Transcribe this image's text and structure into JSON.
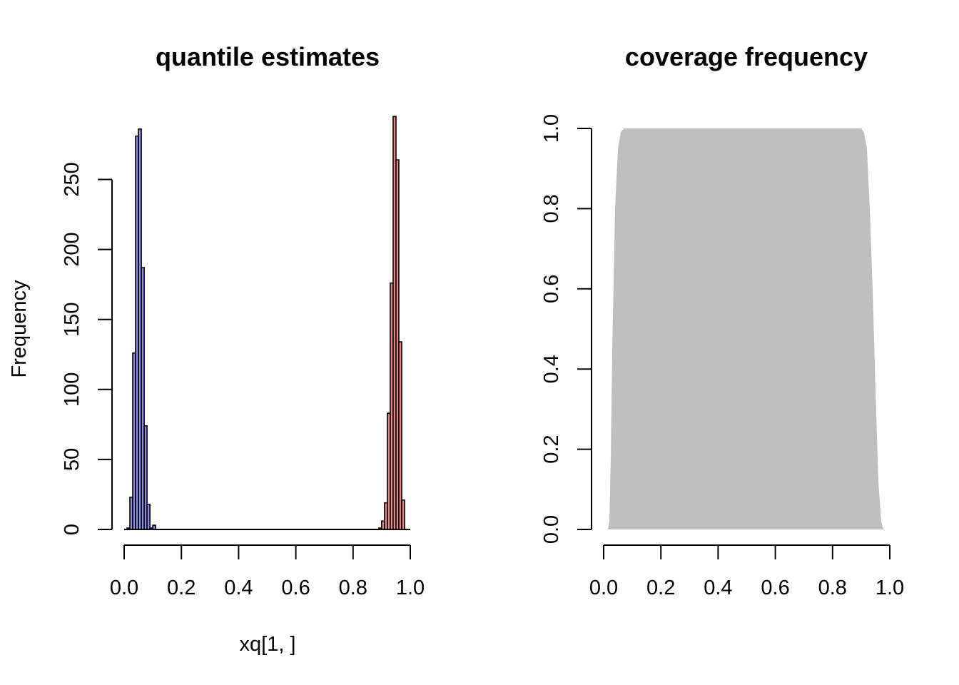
{
  "chart_data": [
    {
      "type": "bar",
      "title": "quantile estimates",
      "xlabel": "xq[1, ]",
      "ylabel": "Frequency",
      "xlim": [
        0,
        1
      ],
      "ylim": [
        0,
        290
      ],
      "x_ticks": [
        "0.0",
        "0.2",
        "0.4",
        "0.6",
        "0.8",
        "1.0"
      ],
      "y_ticks": [
        "0",
        "50",
        "100",
        "150",
        "200",
        "250"
      ],
      "bin_width": 0.01,
      "series": [
        {
          "color": "#8A8EE8",
          "bins": [
            {
              "x0": 0.0,
              "count": 0
            },
            {
              "x0": 0.01,
              "count": 1
            },
            {
              "x0": 0.02,
              "count": 23
            },
            {
              "x0": 0.03,
              "count": 126
            },
            {
              "x0": 0.04,
              "count": 281
            },
            {
              "x0": 0.05,
              "count": 286
            },
            {
              "x0": 0.06,
              "count": 187
            },
            {
              "x0": 0.07,
              "count": 74
            },
            {
              "x0": 0.08,
              "count": 18
            },
            {
              "x0": 0.09,
              "count": 1
            },
            {
              "x0": 0.1,
              "count": 3
            }
          ]
        },
        {
          "color": "#EE8282",
          "bins": [
            {
              "x0": 0.89,
              "count": 1
            },
            {
              "x0": 0.9,
              "count": 6
            },
            {
              "x0": 0.91,
              "count": 19
            },
            {
              "x0": 0.92,
              "count": 83
            },
            {
              "x0": 0.93,
              "count": 176
            },
            {
              "x0": 0.94,
              "count": 295
            },
            {
              "x0": 0.95,
              "count": 264
            },
            {
              "x0": 0.96,
              "count": 134
            },
            {
              "x0": 0.97,
              "count": 21
            },
            {
              "x0": 0.98,
              "count": 0
            }
          ]
        }
      ]
    },
    {
      "type": "area",
      "title": "coverage frequency",
      "xlabel": "",
      "ylabel": "",
      "xlim": [
        0,
        1
      ],
      "ylim": [
        0,
        1
      ],
      "x_ticks": [
        "0.0",
        "0.2",
        "0.4",
        "0.6",
        "0.8",
        "1.0"
      ],
      "y_ticks": [
        "0.0",
        "0.2",
        "0.4",
        "0.6",
        "0.8",
        "1.0"
      ],
      "color": "#BEBEBE",
      "x": [
        0.015,
        0.02,
        0.025,
        0.03,
        0.04,
        0.05,
        0.06,
        0.07,
        0.08,
        0.09,
        0.1,
        0.12,
        0.88,
        0.9,
        0.91,
        0.92,
        0.93,
        0.94,
        0.95,
        0.96,
        0.97,
        0.975,
        0.98
      ],
      "y": [
        0.0,
        0.02,
        0.18,
        0.45,
        0.8,
        0.95,
        0.99,
        1.0,
        1.0,
        1.0,
        1.0,
        1.0,
        1.0,
        1.0,
        0.99,
        0.95,
        0.8,
        0.6,
        0.35,
        0.12,
        0.02,
        0.005,
        0.0
      ]
    }
  ]
}
